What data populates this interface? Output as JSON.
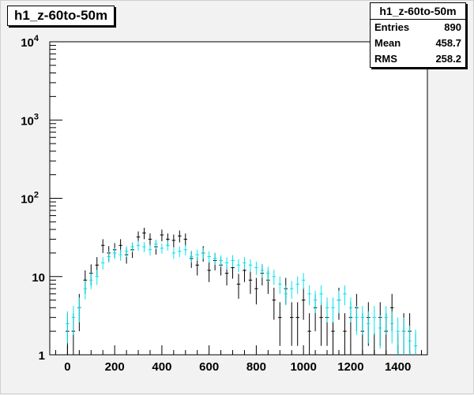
{
  "chart_data": {
    "type": "scatter",
    "title": "h1_z-60to-50m",
    "xlabel": "",
    "ylabel": "",
    "xlim": [
      -75,
      1525
    ],
    "ylim": [
      1,
      10000
    ],
    "y_scale": "log",
    "x_ticks": [
      0,
      200,
      400,
      600,
      800,
      1000,
      1200,
      1400
    ],
    "x_tick_labels": [
      "0",
      "200",
      "400",
      "600",
      "800",
      "1000",
      "1200",
      "1400"
    ],
    "y_ticks": [
      1,
      10,
      100,
      1000,
      10000
    ],
    "y_tick_labels": [
      {
        "base": "1",
        "exp": ""
      },
      {
        "base": "10",
        "exp": ""
      },
      {
        "base": "10",
        "exp": "2"
      },
      {
        "base": "10",
        "exp": "3"
      },
      {
        "base": "10",
        "exp": "4"
      }
    ],
    "bin_half_width": 12.5,
    "series": [
      {
        "color": "#000000",
        "x": [
          0,
          25,
          50,
          75,
          100,
          125,
          150,
          175,
          200,
          225,
          250,
          275,
          300,
          325,
          350,
          375,
          400,
          425,
          450,
          475,
          500,
          525,
          550,
          575,
          600,
          625,
          650,
          675,
          700,
          725,
          750,
          775,
          800,
          825,
          850,
          875,
          900,
          925,
          950,
          975,
          1000,
          1025,
          1050,
          1075,
          1100,
          1125,
          1150,
          1175,
          1200,
          1225,
          1250,
          1275,
          1300,
          1325,
          1350,
          1375,
          1400,
          1425,
          1450,
          1475
        ],
        "y": [
          2,
          2,
          4,
          9,
          11,
          14,
          25,
          20,
          22,
          25,
          19,
          22,
          32,
          36,
          30,
          24,
          34,
          30,
          29,
          33,
          30,
          17,
          14,
          20,
          12,
          16,
          14,
          11,
          13,
          8,
          12,
          9,
          7,
          11,
          9,
          5,
          3,
          7,
          3,
          3,
          5,
          2,
          4,
          3,
          3,
          2,
          5,
          2,
          3,
          4,
          2,
          3,
          1,
          3,
          2,
          4,
          1,
          2,
          2,
          1
        ],
        "y_err_lo": [
          1.4,
          1.4,
          2,
          3,
          3.3,
          3.7,
          5,
          4.5,
          4.7,
          5,
          4.4,
          4.7,
          5.7,
          6,
          5.5,
          4.9,
          5.8,
          5.5,
          5.4,
          5.7,
          5.5,
          4.1,
          3.7,
          4.5,
          3.5,
          4,
          3.7,
          3.3,
          3.6,
          2.8,
          3.5,
          3,
          2.6,
          3.3,
          3,
          2.2,
          1.7,
          2.6,
          1.7,
          1.7,
          2.2,
          1.4,
          2,
          1.7,
          1.7,
          1.4,
          2.2,
          1.4,
          1.7,
          2,
          1.4,
          1.7,
          0.9,
          1.7,
          1.4,
          2,
          0.9,
          1.4,
          1.4,
          0.9
        ]
      },
      {
        "color": "#00e5ee",
        "x": [
          0,
          25,
          50,
          75,
          100,
          125,
          150,
          175,
          200,
          225,
          250,
          275,
          300,
          325,
          350,
          375,
          400,
          425,
          450,
          475,
          500,
          525,
          550,
          575,
          600,
          625,
          650,
          675,
          700,
          725,
          750,
          775,
          800,
          825,
          850,
          875,
          900,
          925,
          950,
          975,
          1000,
          1025,
          1050,
          1075,
          1100,
          1125,
          1150,
          1175,
          1200,
          1225,
          1250,
          1275,
          1300,
          1325,
          1350,
          1375,
          1400,
          1425,
          1450,
          1475
        ],
        "y": [
          2.5,
          3,
          4,
          7,
          9,
          10,
          15,
          18,
          20,
          19,
          21,
          24,
          25,
          24,
          22,
          26,
          23,
          25,
          20,
          21,
          22,
          18,
          19,
          20,
          18,
          17,
          16,
          15,
          16,
          14,
          15,
          14,
          13,
          12,
          11,
          10,
          8,
          6,
          7,
          8,
          9,
          6,
          5,
          6,
          4,
          4,
          5,
          6,
          4,
          3,
          3,
          2.5,
          3,
          2.2,
          3,
          2.5,
          2,
          2,
          1.5,
          1.3
        ],
        "y_err_lo": [
          1.1,
          1.2,
          1.4,
          1.9,
          2.1,
          2.2,
          2.7,
          3,
          3.2,
          3.1,
          3.3,
          3.5,
          3.6,
          3.5,
          3.4,
          3.6,
          3.4,
          3.6,
          3.2,
          3.3,
          3.4,
          3,
          3.1,
          3.2,
          3,
          2.9,
          2.8,
          2.7,
          2.8,
          2.6,
          2.7,
          2.6,
          2.5,
          2.4,
          2.3,
          2.2,
          2,
          1.7,
          1.8,
          2,
          2.1,
          1.7,
          1.6,
          1.7,
          1.4,
          1.4,
          1.6,
          1.7,
          1.4,
          1.2,
          1.2,
          1.1,
          1.2,
          1,
          1.2,
          1.1,
          1,
          1,
          0.85,
          0.8
        ]
      }
    ]
  },
  "stats": {
    "title": "h1_z-60to-50m",
    "rows": [
      {
        "label": "Entries",
        "value": "890"
      },
      {
        "label": "Mean",
        "value": "458.7"
      },
      {
        "label": "RMS",
        "value": "258.2"
      }
    ]
  }
}
